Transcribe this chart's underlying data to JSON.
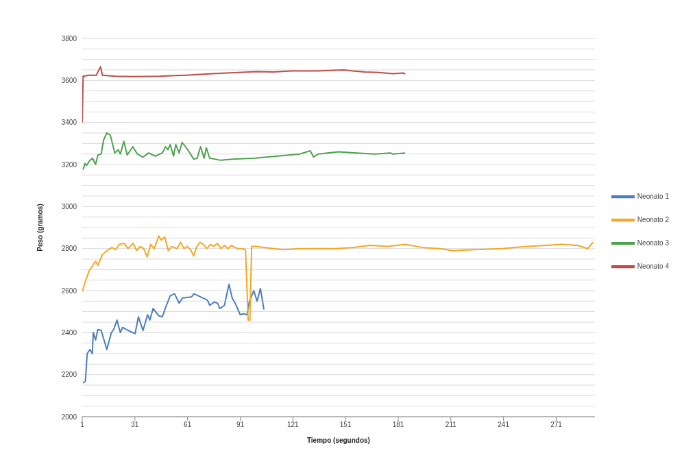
{
  "chart_data": {
    "type": "line",
    "xlabel": "Tiempo (segundos)",
    "ylabel": "Peso (gramos)",
    "xlim": [
      1,
      293
    ],
    "xticks": [
      1,
      31,
      61,
      91,
      121,
      151,
      181,
      211,
      241,
      271
    ],
    "ylim": [
      2000,
      3800
    ],
    "yticks": [
      2000,
      {
        "value": 2050,
        "label": null
      },
      {
        "value": 2100,
        "label": null
      },
      {
        "value": 2150,
        "label": null
      },
      2200,
      {
        "value": 2250,
        "label": null
      },
      {
        "value": 2300,
        "label": null
      },
      {
        "value": 2350,
        "label": null
      },
      2400,
      {
        "value": 2450,
        "label": null
      },
      {
        "value": 2500,
        "label": null
      },
      {
        "value": 2550,
        "label": null
      },
      2600,
      {
        "value": 2650,
        "label": null
      },
      {
        "value": 2700,
        "label": null
      },
      {
        "value": 2750,
        "label": null
      },
      2800,
      {
        "value": 2850,
        "label": null
      },
      {
        "value": 2900,
        "label": null
      },
      {
        "value": 2950,
        "label": null
      },
      3000,
      {
        "value": 3050,
        "label": null
      },
      {
        "value": 3100,
        "label": null
      },
      {
        "value": 3150,
        "label": null
      },
      3200,
      {
        "value": 3250,
        "label": null
      },
      {
        "value": 3300,
        "label": null
      },
      {
        "value": 3350,
        "label": null
      },
      3400,
      {
        "value": 3450,
        "label": null
      },
      {
        "value": 3500,
        "label": null
      },
      {
        "value": 3550,
        "label": null
      },
      3600,
      {
        "value": 3650,
        "label": null
      },
      {
        "value": 3700,
        "label": null
      },
      {
        "value": 3750,
        "label": null
      },
      3800
    ],
    "grid": "y",
    "legend": "right",
    "series": [
      {
        "name": "Neonato 1",
        "color": "#4a7ebb",
        "x": [
          1.5,
          2.8,
          3.8,
          5.4,
          6.7,
          7.3,
          8.6,
          9.9,
          11.8,
          15,
          17.6,
          18.9,
          20.8,
          22.7,
          24,
          27.3,
          31.1,
          33,
          35.6,
          38.2,
          39.5,
          41.4,
          44.6,
          46.6,
          48.5,
          51.1,
          53.6,
          56.2,
          58.1,
          63.3,
          64.6,
          68.4,
          72.3,
          73.6,
          76.2,
          78.1,
          79.4,
          82,
          84.6,
          86.4,
          88.4,
          91,
          92.9,
          94.8,
          96.1,
          98.7,
          100.6,
          102.5,
          104.5
        ],
        "values": [
          2160,
          2170,
          2300,
          2320,
          2300,
          2400,
          2365,
          2415,
          2410,
          2320,
          2400,
          2415,
          2460,
          2400,
          2425,
          2410,
          2395,
          2475,
          2410,
          2485,
          2460,
          2515,
          2480,
          2475,
          2520,
          2575,
          2585,
          2540,
          2565,
          2570,
          2585,
          2570,
          2555,
          2530,
          2545,
          2540,
          2515,
          2530,
          2630,
          2565,
          2535,
          2485,
          2490,
          2485,
          2545,
          2600,
          2550,
          2610,
          2510
        ]
      },
      {
        "name": "Neonato 2",
        "color": "#f5a623",
        "x": [
          1,
          3,
          5,
          7,
          8.6,
          10,
          12.4,
          15,
          18,
          20,
          22,
          25,
          27,
          30,
          32,
          34,
          36,
          38,
          40,
          42,
          44.6,
          46,
          48,
          50,
          52,
          55,
          57,
          59,
          61,
          63,
          64.5,
          66,
          68,
          70,
          72,
          74,
          76,
          78,
          80,
          82,
          84,
          86,
          88,
          90,
          92,
          94,
          95.5,
          96.5,
          97.5,
          100,
          105,
          110,
          115,
          117,
          125,
          135,
          145,
          155,
          165,
          175,
          185,
          195,
          205,
          212,
          225,
          240,
          255,
          265,
          274,
          283,
          289,
          292
        ],
        "values": [
          2595,
          2650,
          2695,
          2720,
          2740,
          2720,
          2770,
          2790,
          2805,
          2795,
          2820,
          2825,
          2800,
          2825,
          2790,
          2810,
          2800,
          2760,
          2820,
          2800,
          2860,
          2840,
          2855,
          2790,
          2810,
          2800,
          2830,
          2800,
          2810,
          2790,
          2765,
          2805,
          2830,
          2820,
          2800,
          2820,
          2810,
          2825,
          2800,
          2815,
          2800,
          2815,
          2805,
          2800,
          2800,
          2795,
          2460,
          2460,
          2810,
          2810,
          2805,
          2800,
          2795,
          2795,
          2800,
          2800,
          2800,
          2805,
          2815,
          2810,
          2820,
          2805,
          2800,
          2790,
          2795,
          2800,
          2810,
          2815,
          2820,
          2815,
          2800,
          2830
        ]
      },
      {
        "name": "Neonato 3",
        "color": "#4ea24e",
        "x": [
          1.5,
          2.5,
          3.4,
          5.4,
          6.9,
          8.6,
          9.9,
          11.8,
          13.1,
          15,
          17,
          19.5,
          21.5,
          22.7,
          24.7,
          26.6,
          29.8,
          32.4,
          35.6,
          38.8,
          42.7,
          46.6,
          48.5,
          49.8,
          51.1,
          53,
          54.3,
          56.2,
          57.9,
          60.7,
          64.6,
          66.5,
          68.4,
          70.4,
          71.7,
          73.6,
          80,
          86.4,
          99.3,
          112.2,
          118.6,
          125,
          130.9,
          132.8,
          135.4,
          146.9,
          157.3,
          167.5,
          176.6,
          177.8,
          184.9
        ],
        "values": [
          3175,
          3205,
          3195,
          3220,
          3230,
          3200,
          3245,
          3250,
          3315,
          3350,
          3340,
          3255,
          3270,
          3250,
          3310,
          3245,
          3285,
          3250,
          3235,
          3255,
          3240,
          3255,
          3285,
          3270,
          3295,
          3240,
          3295,
          3255,
          3305,
          3275,
          3225,
          3230,
          3285,
          3230,
          3280,
          3230,
          3220,
          3225,
          3230,
          3240,
          3245,
          3250,
          3265,
          3235,
          3250,
          3260,
          3255,
          3250,
          3255,
          3250,
          3255
        ]
      },
      {
        "name": "Neonato 4",
        "color": "#be4b48",
        "x": [
          1,
          1.5,
          5,
          9,
          11.4,
          12.5,
          20,
          30,
          45,
          60,
          75,
          90,
          100,
          110,
          120,
          135,
          150,
          155,
          162,
          170,
          178,
          184,
          185
        ],
        "values": [
          3400,
          3620,
          3625,
          3625,
          3665,
          3625,
          3620,
          3618,
          3620,
          3625,
          3632,
          3638,
          3642,
          3640,
          3645,
          3645,
          3650,
          3645,
          3640,
          3638,
          3632,
          3635,
          3630
        ]
      }
    ]
  }
}
